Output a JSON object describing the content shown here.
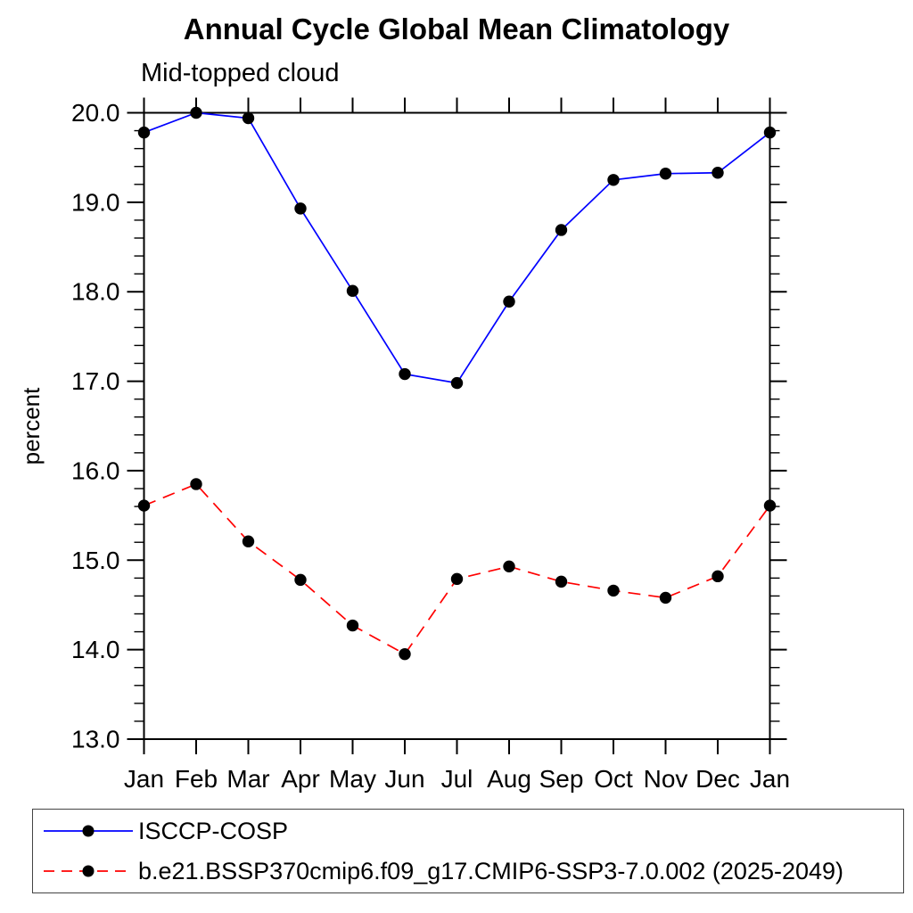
{
  "title": "Annual Cycle Global Mean Climatology",
  "subtitle": "Mid-topped cloud",
  "chart_data": {
    "type": "line",
    "title": "Annual Cycle Global Mean Climatology",
    "subtitle": "Mid-topped cloud",
    "ylabel": "percent",
    "xlabel": "",
    "categories": [
      "Jan",
      "Feb",
      "Mar",
      "Apr",
      "May",
      "Jun",
      "Jul",
      "Aug",
      "Sep",
      "Oct",
      "Nov",
      "Dec",
      "Jan"
    ],
    "ylim": [
      13.0,
      20.0
    ],
    "ytick_step": 1.0,
    "ytick_minor_step": 0.2,
    "ytick_label_format": "one_decimal",
    "grid": "off",
    "legend_position": "bottom-box",
    "marker_color": "#000000",
    "axis_color": "#000000",
    "series": [
      {
        "name": "ISCCP-COSP",
        "color": "#0000ff",
        "style": "solid",
        "values": [
          19.78,
          20.0,
          19.94,
          18.93,
          18.01,
          17.08,
          16.98,
          17.89,
          18.69,
          19.25,
          19.32,
          19.33,
          19.78
        ]
      },
      {
        "name": "b.e21.BSSP370cmip6.f09_g17.CMIP6-SSP3-7.0.002 (2025-2049)",
        "color": "#ff0000",
        "style": "dashed",
        "values": [
          15.61,
          15.85,
          15.21,
          14.78,
          14.27,
          13.95,
          14.79,
          14.93,
          14.76,
          14.66,
          14.58,
          14.82,
          15.61
        ]
      }
    ]
  }
}
